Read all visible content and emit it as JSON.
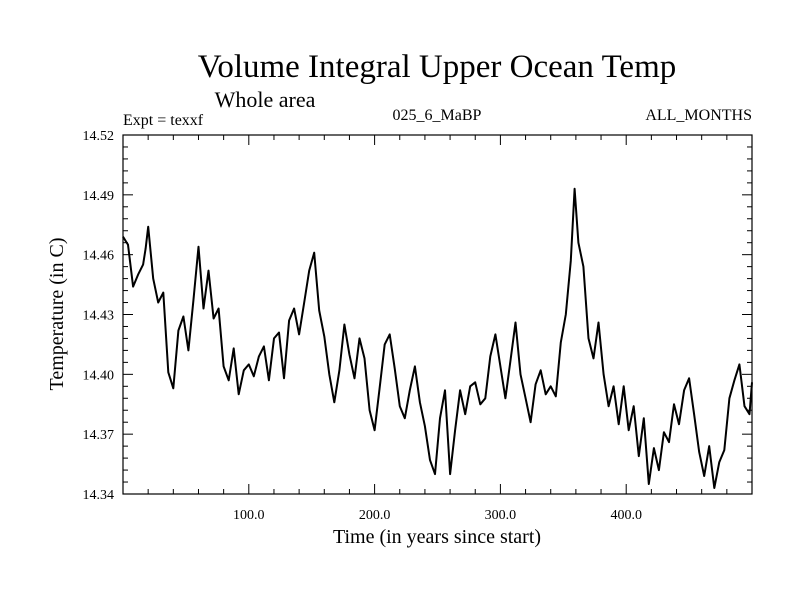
{
  "chart_data": {
    "type": "line",
    "title": "Volume Integral Upper Ocean Temp",
    "subtitle": "Whole area",
    "header_left": "Expt = texxf",
    "header_center": "025_6_MaBP",
    "header_right": "ALL_MONTHS",
    "xlabel": "Time (in years since start)",
    "ylabel": "Temperature (in C)",
    "xlim": [
      0,
      500
    ],
    "ylim": [
      14.34,
      14.52
    ],
    "xticks": [
      100,
      200,
      300,
      400
    ],
    "xtick_labels": [
      "100.0",
      "200.0",
      "300.0",
      "400.0"
    ],
    "yticks": [
      14.34,
      14.37,
      14.4,
      14.43,
      14.46,
      14.49,
      14.52
    ],
    "ytick_labels": [
      "14.34",
      "14.37",
      "14.40",
      "14.43",
      "14.46",
      "14.49",
      "14.52"
    ],
    "grid": false,
    "series": [
      {
        "name": "Volume Integral Upper Ocean Temp",
        "color": "#000000",
        "x": [
          0,
          4,
          8,
          12,
          16,
          18,
          20,
          24,
          28,
          32,
          36,
          40,
          44,
          48,
          52,
          56,
          60,
          64,
          68,
          72,
          76,
          80,
          84,
          88,
          92,
          96,
          100,
          104,
          108,
          112,
          116,
          120,
          124,
          128,
          132,
          136,
          140,
          144,
          148,
          152,
          156,
          160,
          164,
          168,
          172,
          176,
          180,
          184,
          188,
          192,
          196,
          200,
          204,
          208,
          212,
          216,
          220,
          224,
          228,
          232,
          236,
          240,
          244,
          248,
          252,
          256,
          260,
          264,
          268,
          272,
          276,
          280,
          284,
          288,
          292,
          296,
          300,
          304,
          308,
          312,
          316,
          320,
          324,
          328,
          332,
          336,
          340,
          344,
          348,
          352,
          356,
          359,
          362,
          366,
          370,
          374,
          378,
          382,
          386,
          390,
          394,
          398,
          402,
          406,
          410,
          414,
          418,
          422,
          426,
          430,
          434,
          438,
          442,
          446,
          450,
          454,
          458,
          462,
          466,
          470,
          474,
          478,
          482,
          486,
          490,
          494,
          498,
          500
        ],
        "values": [
          14.469,
          14.465,
          14.444,
          14.45,
          14.455,
          14.463,
          14.474,
          14.448,
          14.436,
          14.441,
          14.401,
          14.393,
          14.422,
          14.429,
          14.412,
          14.437,
          14.464,
          14.433,
          14.452,
          14.428,
          14.433,
          14.404,
          14.397,
          14.413,
          14.39,
          14.402,
          14.405,
          14.399,
          14.409,
          14.414,
          14.397,
          14.418,
          14.421,
          14.398,
          14.427,
          14.433,
          14.42,
          14.436,
          14.452,
          14.461,
          14.432,
          14.419,
          14.4,
          14.386,
          14.402,
          14.425,
          14.41,
          14.398,
          14.418,
          14.408,
          14.382,
          14.372,
          14.393,
          14.415,
          14.42,
          14.403,
          14.384,
          14.378,
          14.392,
          14.404,
          14.386,
          14.374,
          14.357,
          14.35,
          14.378,
          14.392,
          14.35,
          14.372,
          14.392,
          14.38,
          14.394,
          14.396,
          14.385,
          14.388,
          14.409,
          14.42,
          14.404,
          14.388,
          14.407,
          14.426,
          14.4,
          14.388,
          14.376,
          14.395,
          14.402,
          14.39,
          14.394,
          14.389,
          14.416,
          14.43,
          14.457,
          14.493,
          14.466,
          14.454,
          14.418,
          14.408,
          14.426,
          14.4,
          14.384,
          14.394,
          14.375,
          14.394,
          14.372,
          14.384,
          14.359,
          14.378,
          14.345,
          14.363,
          14.352,
          14.371,
          14.366,
          14.385,
          14.375,
          14.392,
          14.398,
          14.38,
          14.361,
          14.349,
          14.364,
          14.343,
          14.356,
          14.362,
          14.388,
          14.397,
          14.405,
          14.384,
          14.38,
          14.396
        ]
      }
    ]
  }
}
